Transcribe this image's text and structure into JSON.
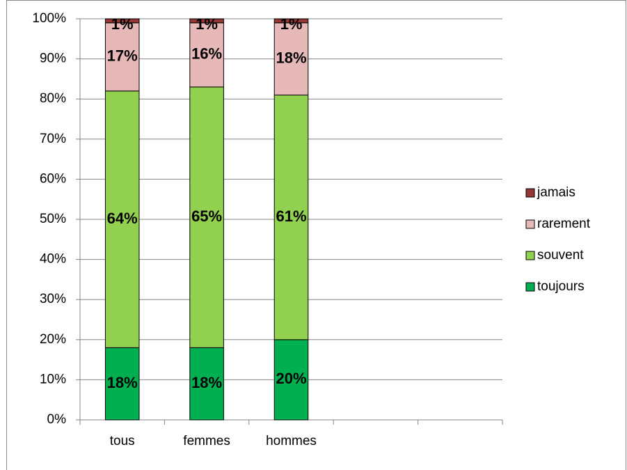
{
  "chart_data": {
    "type": "stacked_bar",
    "categories": [
      "tous",
      "femmes",
      "hommes",
      null,
      null
    ],
    "series": [
      {
        "name": "toujours",
        "color": "#00b050",
        "values": [
          18,
          18,
          20,
          null,
          null
        ],
        "value_labels": [
          "18%",
          "18%",
          "20%",
          null,
          null
        ]
      },
      {
        "name": "souvent",
        "color": "#92d050",
        "values": [
          64,
          65,
          61,
          null,
          null
        ],
        "value_labels": [
          "64%",
          "65%",
          "61%",
          null,
          null
        ]
      },
      {
        "name": "rarement",
        "color": "#e6b9b8",
        "values": [
          17,
          16,
          18,
          null,
          null
        ],
        "value_labels": [
          "17%",
          "16%",
          "18%",
          null,
          null
        ]
      },
      {
        "name": "jamais",
        "color": "#953735",
        "values": [
          1,
          1,
          1,
          null,
          null
        ],
        "value_labels": [
          "1%",
          "1%",
          "1%",
          null,
          null
        ]
      }
    ],
    "ylim": [
      0,
      100
    ],
    "yticks": [
      {
        "value": 0,
        "label": "0%"
      },
      {
        "value": 10,
        "label": "10%"
      },
      {
        "value": 20,
        "label": "20%"
      },
      {
        "value": 30,
        "label": "30%"
      },
      {
        "value": 40,
        "label": "40%"
      },
      {
        "value": 50,
        "label": "50%"
      },
      {
        "value": 60,
        "label": "60%"
      },
      {
        "value": 70,
        "label": "70%"
      },
      {
        "value": 80,
        "label": "80%"
      },
      {
        "value": 90,
        "label": "90%"
      },
      {
        "value": 100,
        "label": "100%"
      }
    ],
    "grid": true,
    "legend": "right"
  }
}
